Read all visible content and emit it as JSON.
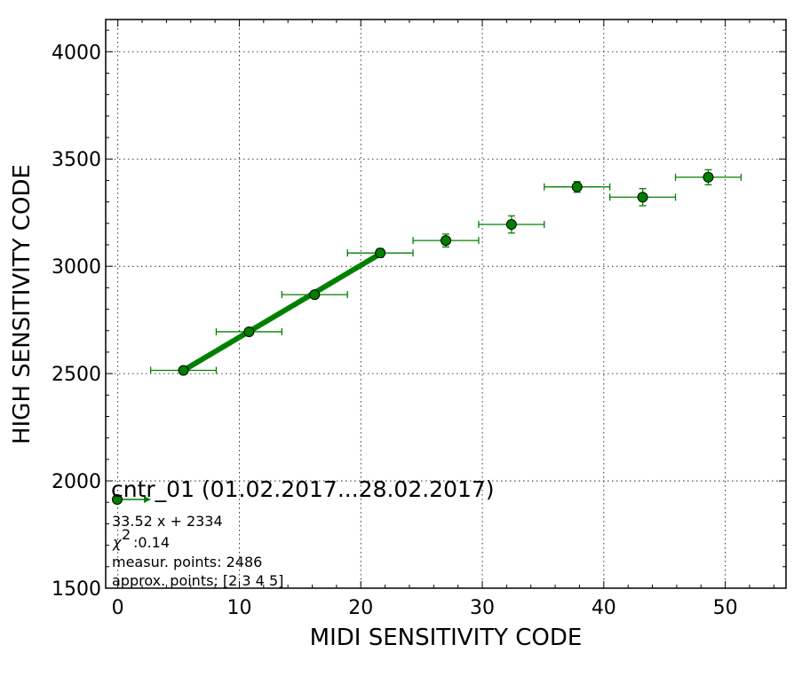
{
  "chart_data": {
    "type": "scatter",
    "xlabel": "MIDI SENSITIVITY CODE",
    "ylabel": "HIGH SENSITIVITY CODE",
    "xlim": [
      -1,
      55
    ],
    "ylim": [
      1500,
      4150
    ],
    "x_ticks": [
      0,
      10,
      20,
      30,
      40,
      50
    ],
    "y_ticks": [
      1500,
      2000,
      2500,
      3000,
      3500,
      4000
    ],
    "x_ticks_labels": [
      "0",
      "10",
      "20",
      "30",
      "40",
      "50"
    ],
    "y_ticks_labels": [
      "1500",
      "2000",
      "2500",
      "3000",
      "3500",
      "4000"
    ],
    "grid": true,
    "legend_position": "bottom-left",
    "series": [
      {
        "name": "cntr_01 (01.02.2017...28.02.2017)",
        "color": "#008000",
        "points": [
          {
            "x": 5.4,
            "y": 2515,
            "xerr": 2.7,
            "yerr": 10
          },
          {
            "x": 10.8,
            "y": 2695,
            "xerr": 2.7,
            "yerr": 12
          },
          {
            "x": 16.2,
            "y": 2868,
            "xerr": 2.7,
            "yerr": 15
          },
          {
            "x": 21.6,
            "y": 3062,
            "xerr": 2.7,
            "yerr": 20
          },
          {
            "x": 27.0,
            "y": 3120,
            "xerr": 2.7,
            "yerr": 30
          },
          {
            "x": 32.4,
            "y": 3195,
            "xerr": 2.7,
            "yerr": 40
          },
          {
            "x": 37.8,
            "y": 3370,
            "xerr": 2.7,
            "yerr": 25
          },
          {
            "x": 43.2,
            "y": 3322,
            "xerr": 2.7,
            "yerr": 40
          },
          {
            "x": 48.6,
            "y": 3415,
            "xerr": 2.7,
            "yerr": 35
          }
        ]
      }
    ],
    "fit": {
      "slope": 33.52,
      "intercept": 2334,
      "x_range": [
        5.4,
        21.6
      ],
      "color": "#008000"
    },
    "legend": {
      "title": "cntr_01 (01.02.2017...28.02.2017)",
      "lines": [
        "33.52 x + 2334",
        ":0.14",
        "measur. points: 2486",
        "approx. points: [2 3 4 5]"
      ],
      "chi_symbol": "χ",
      "chi_power": "2"
    }
  }
}
